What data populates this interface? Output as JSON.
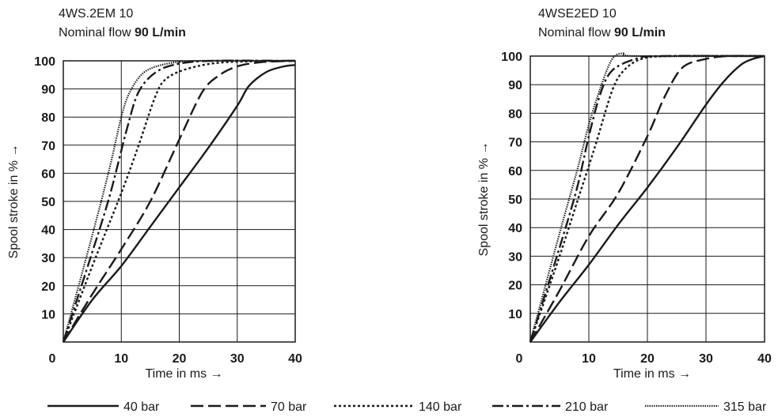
{
  "chart_data": [
    {
      "type": "line",
      "title": "4WS.2EM 10",
      "subtitle_prefix": "Nominal flow ",
      "subtitle_value": "90 L/min",
      "xlabel": "Time in ms →",
      "ylabel": "Spool stroke in % →",
      "xlim": [
        0,
        40
      ],
      "ylim": [
        0,
        100
      ],
      "x_ticks": [
        "0",
        "10",
        "20",
        "30",
        "40"
      ],
      "y_ticks": [
        "10",
        "20",
        "30",
        "40",
        "50",
        "60",
        "70",
        "80",
        "90",
        "100"
      ],
      "grid": true,
      "series": [
        {
          "name": "40 bar",
          "style": "solid",
          "points": [
            [
              0,
              0
            ],
            [
              5,
              15
            ],
            [
              10,
              27
            ],
            [
              15,
              41
            ],
            [
              20,
              55
            ],
            [
              25,
              69
            ],
            [
              30,
              84
            ],
            [
              32,
              91
            ],
            [
              35,
              96
            ],
            [
              38,
              98
            ],
            [
              40,
              98.5
            ]
          ]
        },
        {
          "name": "70 bar",
          "style": "dashed",
          "points": [
            [
              0,
              0
            ],
            [
              5,
              17
            ],
            [
              10,
              33
            ],
            [
              15,
              50
            ],
            [
              20,
              72
            ],
            [
              24,
              89
            ],
            [
              27,
              95
            ],
            [
              30,
              98
            ],
            [
              34,
              99.5
            ],
            [
              40,
              100
            ]
          ]
        },
        {
          "name": "140 bar",
          "style": "dotted",
          "points": [
            [
              0,
              0
            ],
            [
              5,
              27
            ],
            [
              10,
              53
            ],
            [
              13,
              70
            ],
            [
              16,
              88
            ],
            [
              18,
              94
            ],
            [
              22,
              97.5
            ],
            [
              28,
              99.5
            ],
            [
              40,
              100
            ]
          ]
        },
        {
          "name": "210 bar",
          "style": "dashdot",
          "points": [
            [
              0,
              0
            ],
            [
              5,
              32
            ],
            [
              8,
              52
            ],
            [
              11,
              76
            ],
            [
              13,
              89
            ],
            [
              16,
              96
            ],
            [
              20,
              99
            ],
            [
              26,
              100
            ],
            [
              40,
              100
            ]
          ]
        },
        {
          "name": "315 bar",
          "style": "densedot",
          "points": [
            [
              0,
              0
            ],
            [
              5,
              38
            ],
            [
              8,
              62
            ],
            [
              10,
              80
            ],
            [
              11.5,
              89
            ],
            [
              14,
              96
            ],
            [
              18,
              99
            ],
            [
              24,
              100
            ],
            [
              40,
              100
            ]
          ]
        }
      ]
    },
    {
      "type": "line",
      "title": "4WSE2ED 10",
      "subtitle_prefix": "Nominal flow ",
      "subtitle_value": "90 L/min",
      "xlabel": "Time in ms →",
      "ylabel": "Spool stroke in % →",
      "xlim": [
        0,
        40
      ],
      "ylim": [
        0,
        100
      ],
      "x_ticks": [
        "0",
        "10",
        "20",
        "30",
        "40"
      ],
      "y_ticks": [
        "10",
        "20",
        "30",
        "40",
        "50",
        "60",
        "70",
        "80",
        "90",
        "100"
      ],
      "grid": true,
      "series": [
        {
          "name": "40 bar",
          "style": "solid",
          "points": [
            [
              0,
              0
            ],
            [
              5,
              14
            ],
            [
              10,
              27
            ],
            [
              15,
              41
            ],
            [
              20,
              54
            ],
            [
              25,
              68
            ],
            [
              30,
              83
            ],
            [
              33,
              91
            ],
            [
              36,
              97
            ],
            [
              38,
              99
            ],
            [
              40,
              100
            ]
          ]
        },
        {
          "name": "70 bar",
          "style": "dashed",
          "points": [
            [
              0,
              0
            ],
            [
              5,
              18
            ],
            [
              10,
              37
            ],
            [
              15,
              52
            ],
            [
              20,
              72
            ],
            [
              23,
              86
            ],
            [
              26,
              96
            ],
            [
              30,
              99
            ],
            [
              34,
              100
            ],
            [
              40,
              100
            ]
          ]
        },
        {
          "name": "140 bar",
          "style": "dotted",
          "points": [
            [
              0,
              0
            ],
            [
              5,
              30
            ],
            [
              8,
              49
            ],
            [
              11,
              68
            ],
            [
              14,
              88
            ],
            [
              16,
              95
            ],
            [
              19,
              99
            ],
            [
              24,
              100
            ],
            [
              40,
              100
            ]
          ]
        },
        {
          "name": "210 bar",
          "style": "dashdot",
          "points": [
            [
              0,
              0
            ],
            [
              5,
              33
            ],
            [
              8,
              54
            ],
            [
              10,
              72
            ],
            [
              12,
              87
            ],
            [
              14,
              95
            ],
            [
              18,
              99
            ],
            [
              22,
              100
            ],
            [
              40,
              100
            ]
          ]
        },
        {
          "name": "315 bar",
          "style": "densedot",
          "points": [
            [
              0,
              0
            ],
            [
              5,
              38
            ],
            [
              8,
              60
            ],
            [
              10,
              76
            ],
            [
              12,
              89
            ],
            [
              14,
              99
            ],
            [
              16,
              101
            ],
            [
              18,
              100
            ],
            [
              40,
              100
            ]
          ]
        }
      ]
    }
  ],
  "legend": [
    {
      "label": "40 bar",
      "style": "solid"
    },
    {
      "label": "70 bar",
      "style": "dashed"
    },
    {
      "label": "140 bar",
      "style": "dotted"
    },
    {
      "label": "210 bar",
      "style": "dashdot"
    },
    {
      "label": "315 bar",
      "style": "densedot"
    }
  ],
  "colors": {
    "ink": "#1a1a1a",
    "background": "#ffffff"
  }
}
